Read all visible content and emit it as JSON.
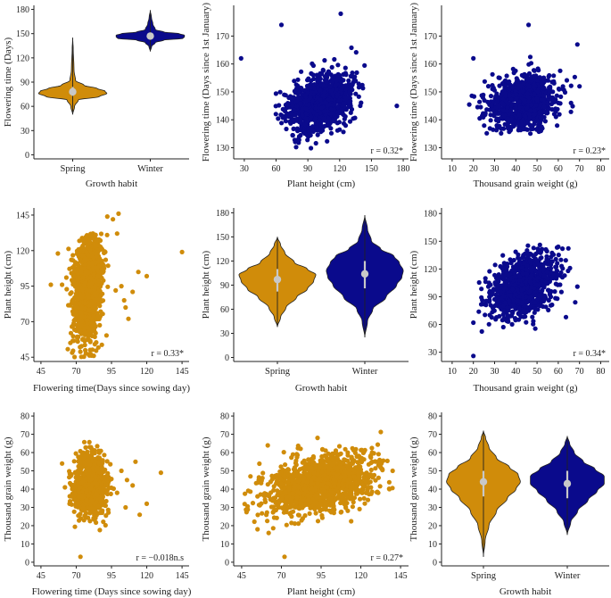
{
  "colors": {
    "spring": "#d08c0a",
    "winter": "#0a0a8c",
    "median_point": "#c8c8c8",
    "axis": "#222222"
  },
  "chart_data": [
    {
      "type": "violin",
      "id": "p1",
      "xlabel": "Growth habit",
      "ylabel": "Flowering time (Days)",
      "categories": [
        "Spring",
        "Winter"
      ],
      "yticks": [
        0,
        30,
        60,
        90,
        120,
        150,
        180
      ],
      "ylim": [
        -5,
        185
      ],
      "series": [
        {
          "name": "Spring",
          "color": "spring",
          "min": 50,
          "max": 145,
          "median": 78,
          "q1": 73,
          "q3": 84,
          "wt": [
            [
              50,
              0
            ],
            [
              60,
              1
            ],
            [
              68,
              3
            ],
            [
              72,
              14
            ],
            [
              76,
              18
            ],
            [
              79,
              17
            ],
            [
              82,
              13
            ],
            [
              86,
              6
            ],
            [
              92,
              1.5
            ],
            [
              105,
              0.7
            ],
            [
              130,
              0.3
            ],
            [
              145,
              0
            ]
          ]
        },
        {
          "name": "Winter",
          "color": "winter",
          "min": 128,
          "max": 179,
          "median": 147,
          "q1": 144,
          "q3": 151,
          "wt": [
            [
              128,
              0
            ],
            [
              134,
              0.8
            ],
            [
              139,
              3
            ],
            [
              142,
              8
            ],
            [
              144,
              19
            ],
            [
              146,
              20
            ],
            [
              148,
              20
            ],
            [
              150,
              17
            ],
            [
              152,
              8
            ],
            [
              155,
              3
            ],
            [
              162,
              1.5
            ],
            [
              170,
              0.7
            ],
            [
              179,
              0
            ]
          ]
        }
      ]
    },
    {
      "type": "scatter",
      "id": "p2",
      "xlabel": "Plant height (cm)",
      "ylabel": "Flowering time (Days since 1st January)",
      "xticks": [
        30,
        60,
        90,
        120,
        150,
        180
      ],
      "yticks": [
        130,
        140,
        150,
        160,
        170
      ],
      "xlim": [
        20,
        185
      ],
      "ylim": [
        126,
        181
      ],
      "color": "winter",
      "annotation": "r = 0.32*",
      "cluster": {
        "cx": 100,
        "cy": 146,
        "sx": 15,
        "sy": 5,
        "rho": 0.35,
        "n": 1100,
        "xmin": 52,
        "xmax": 150,
        "ymin": 128,
        "ymax": 172,
        "seed": 11
      },
      "outliers": [
        [
          27,
          162
        ],
        [
          174,
          145
        ],
        [
          121,
          178
        ],
        [
          65,
          174
        ]
      ]
    },
    {
      "type": "scatter",
      "id": "p3",
      "xlabel": "Thousand grain weight (g)",
      "ylabel": "Flowering time (Days since 1st January)",
      "xticks": [
        10,
        20,
        30,
        40,
        50,
        60,
        70,
        80
      ],
      "yticks": [
        130,
        140,
        150,
        160,
        170
      ],
      "xlim": [
        5,
        84
      ],
      "ylim": [
        126,
        181
      ],
      "color": "winter",
      "annotation": "r = 0.23*",
      "cluster": {
        "cx": 43,
        "cy": 146,
        "sx": 8,
        "sy": 5,
        "rho": 0.25,
        "n": 1000,
        "xmin": 18,
        "xmax": 68,
        "ymin": 135,
        "ymax": 173,
        "seed": 22
      },
      "outliers": [
        [
          20,
          162
        ],
        [
          69,
          167
        ],
        [
          70,
          152
        ],
        [
          46,
          174
        ]
      ]
    },
    {
      "type": "scatter",
      "id": "p4",
      "xlabel": "Flowering time(Days since sowing day)",
      "ylabel": "Plant height (cm)",
      "xticks": [
        45,
        70,
        95,
        120,
        145
      ],
      "yticks": [
        45,
        70,
        95,
        120,
        145
      ],
      "xlim": [
        40,
        150
      ],
      "ylim": [
        42,
        150
      ],
      "color": "spring",
      "annotation": "r = 0.33*",
      "cluster": {
        "cx": 78,
        "cy": 95,
        "sx": 5,
        "sy": 20,
        "rho": 0.25,
        "n": 1300,
        "xmin": 63,
        "xmax": 93,
        "ymin": 45,
        "ymax": 132,
        "seed": 33
      },
      "outliers": [
        [
          52,
          96
        ],
        [
          57,
          118
        ],
        [
          145,
          119
        ],
        [
          120,
          102
        ],
        [
          114,
          105
        ],
        [
          107,
          72
        ],
        [
          105,
          80
        ],
        [
          102,
          95
        ],
        [
          110,
          91
        ],
        [
          104,
          85
        ],
        [
          98,
          92
        ],
        [
          100,
          146
        ],
        [
          96,
          142
        ],
        [
          92,
          144
        ],
        [
          63,
          101
        ],
        [
          60,
          96
        ],
        [
          99,
          132
        ]
      ]
    },
    {
      "type": "violin",
      "id": "p5",
      "xlabel": "Growth habit",
      "ylabel": "Plant height (cm)",
      "categories": [
        "Spring",
        "Winter"
      ],
      "yticks": [
        0,
        30,
        60,
        90,
        120,
        150,
        180
      ],
      "ylim": [
        -5,
        186
      ],
      "series": [
        {
          "name": "Spring",
          "color": "spring",
          "min": 38,
          "max": 150,
          "median": 97,
          "q1": 82,
          "q3": 110,
          "wt": [
            [
              38,
              0
            ],
            [
              50,
              1.5
            ],
            [
              62,
              4
            ],
            [
              75,
              9
            ],
            [
              85,
              14
            ],
            [
              95,
              17
            ],
            [
              103,
              18
            ],
            [
              110,
              14
            ],
            [
              118,
              8
            ],
            [
              130,
              3.5
            ],
            [
              140,
              1.5
            ],
            [
              150,
              0
            ]
          ]
        },
        {
          "name": "Winter",
          "color": "winter",
          "min": 25,
          "max": 177,
          "median": 104,
          "q1": 86,
          "q3": 120,
          "wt": [
            [
              25,
              0
            ],
            [
              45,
              1
            ],
            [
              60,
              3
            ],
            [
              75,
              8
            ],
            [
              90,
              12
            ],
            [
              100,
              14
            ],
            [
              108,
              14.5
            ],
            [
              118,
              13
            ],
            [
              126,
              11
            ],
            [
              135,
              6
            ],
            [
              145,
              2.5
            ],
            [
              160,
              1
            ],
            [
              177,
              0
            ]
          ]
        }
      ]
    },
    {
      "type": "scatter",
      "id": "p6",
      "xlabel": "Thousand grain weight (g)",
      "ylabel": "Plant height (cm)",
      "xticks": [
        10,
        20,
        30,
        40,
        50,
        60,
        70,
        80
      ],
      "yticks": [
        30,
        60,
        90,
        120,
        150,
        180
      ],
      "xlim": [
        5,
        84
      ],
      "ylim": [
        20,
        186
      ],
      "color": "winter",
      "annotation": "r = 0.34*",
      "cluster": {
        "cx": 43,
        "cy": 100,
        "sx": 8,
        "sy": 17,
        "rho": 0.4,
        "n": 1000,
        "xmin": 22,
        "xmax": 66,
        "ymin": 50,
        "ymax": 147,
        "seed": 44
      },
      "outliers": [
        [
          20,
          26
        ],
        [
          20,
          62
        ],
        [
          68,
          84
        ],
        [
          69,
          101
        ],
        [
          60,
          144
        ],
        [
          62,
          142
        ]
      ]
    },
    {
      "type": "scatter",
      "id": "p7",
      "xlabel": "Flowering time (Days since sowing day)",
      "ylabel": "Thousand grain weight (g)",
      "xticks": [
        45,
        70,
        95,
        120,
        145
      ],
      "yticks": [
        0,
        10,
        20,
        30,
        40,
        50,
        60,
        70,
        80
      ],
      "xlim": [
        40,
        150
      ],
      "ylim": [
        -2,
        82
      ],
      "color": "spring",
      "annotation": "r = −0.018n.s",
      "cluster": {
        "cx": 80,
        "cy": 42,
        "sx": 6,
        "sy": 8,
        "rho": 0,
        "n": 900,
        "xmin": 64,
        "xmax": 98,
        "ymin": 16,
        "ymax": 72,
        "seed": 55
      },
      "outliers": [
        [
          73,
          3
        ],
        [
          60,
          54
        ],
        [
          62,
          41
        ],
        [
          130,
          49
        ],
        [
          115,
          26
        ],
        [
          120,
          32
        ],
        [
          110,
          42
        ],
        [
          112,
          55
        ],
        [
          105,
          30
        ],
        [
          102,
          50
        ],
        [
          99,
          38
        ],
        [
          106,
          45
        ]
      ]
    },
    {
      "type": "scatter",
      "id": "p8",
      "xlabel": "Plant height (cm)",
      "ylabel": "Thousand grain weight (g)",
      "xticks": [
        45,
        70,
        95,
        120,
        145
      ],
      "yticks": [
        0,
        10,
        20,
        30,
        40,
        50,
        60,
        70,
        80
      ],
      "xlim": [
        40,
        150
      ],
      "ylim": [
        -2,
        82
      ],
      "color": "spring",
      "annotation": "r = 0.27*",
      "cluster": {
        "cx": 95,
        "cy": 43,
        "sx": 17,
        "sy": 8,
        "rho": 0.38,
        "n": 1400,
        "xmin": 46,
        "xmax": 140,
        "ymin": 14,
        "ymax": 72,
        "seed": 66
      },
      "outliers": [
        [
          72,
          3
        ],
        [
          55,
          18
        ],
        [
          62,
          16
        ],
        [
          138,
          40
        ],
        [
          140,
          50
        ]
      ]
    },
    {
      "type": "violin",
      "id": "p9",
      "xlabel": "Growth habit",
      "ylabel": "Thousand grain weight (g)",
      "categories": [
        "Spring",
        "Winter"
      ],
      "yticks": [
        0,
        10,
        20,
        30,
        40,
        50,
        60,
        70,
        80
      ],
      "ylim": [
        -2,
        82
      ],
      "series": [
        {
          "name": "Spring",
          "color": "spring",
          "min": 3,
          "max": 72,
          "median": 44,
          "q1": 36,
          "q3": 50,
          "wt": [
            [
              3,
              0
            ],
            [
              12,
              0.8
            ],
            [
              20,
              2.5
            ],
            [
              28,
              6
            ],
            [
              35,
              11
            ],
            [
              40,
              15
            ],
            [
              44,
              17
            ],
            [
              48,
              16
            ],
            [
              52,
              12
            ],
            [
              57,
              6
            ],
            [
              63,
              2.5
            ],
            [
              68,
              1
            ],
            [
              72,
              0
            ]
          ]
        },
        {
          "name": "Winter",
          "color": "winter",
          "min": 15,
          "max": 69,
          "median": 43,
          "q1": 35,
          "q3": 50,
          "wt": [
            [
              15,
              0
            ],
            [
              22,
              1.5
            ],
            [
              28,
              4.5
            ],
            [
              34,
              9
            ],
            [
              39,
              13
            ],
            [
              43,
              16
            ],
            [
              47,
              16
            ],
            [
              51,
              12
            ],
            [
              55,
              7
            ],
            [
              60,
              3
            ],
            [
              65,
              1
            ],
            [
              69,
              0
            ]
          ]
        }
      ]
    }
  ]
}
